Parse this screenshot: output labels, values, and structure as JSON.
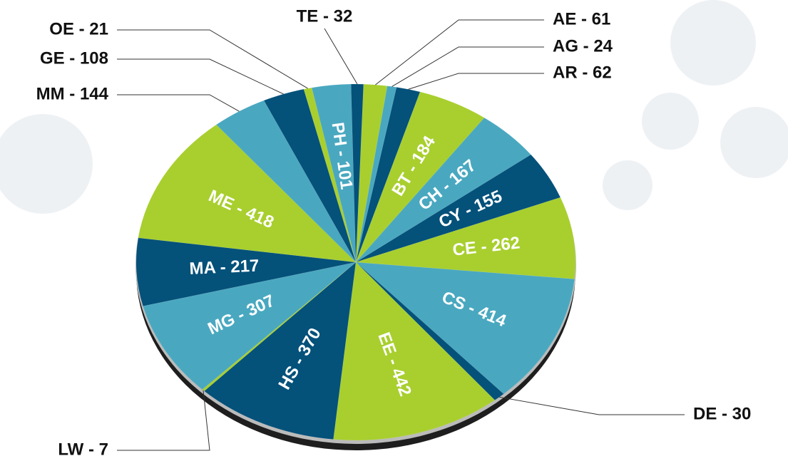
{
  "chart_data": {
    "type": "pie",
    "values": [
      61,
      24,
      62,
      184,
      167,
      155,
      262,
      414,
      30,
      442,
      370,
      7,
      307,
      217,
      418,
      144,
      108,
      21,
      101,
      32
    ],
    "value_labels": [
      "AE - 61",
      "AG - 24",
      "AR - 62",
      "BT - 184",
      "CH - 167",
      "CY - 155",
      "CE - 262",
      "CS - 414",
      "DE - 30",
      "EE - 442",
      "HS - 370",
      "LW - 7",
      "MG - 307",
      "MA - 217",
      "ME - 418",
      "MM - 144",
      "GE - 108",
      "OE - 21",
      "PH - 101",
      "TE - 32"
    ],
    "colors": [
      "#a8cf2e",
      "#49a8c0",
      "#04517a",
      "#a8cf2e",
      "#49a8c0",
      "#04517a",
      "#a8cf2e",
      "#49a8c0",
      "#04517a",
      "#a8cf2e",
      "#04517a",
      "#a8cf2e",
      "#49a8c0",
      "#04517a",
      "#a8cf2e",
      "#49a8c0",
      "#04517a",
      "#a8cf2e",
      "#49a8c0",
      "#04517a"
    ]
  }
}
